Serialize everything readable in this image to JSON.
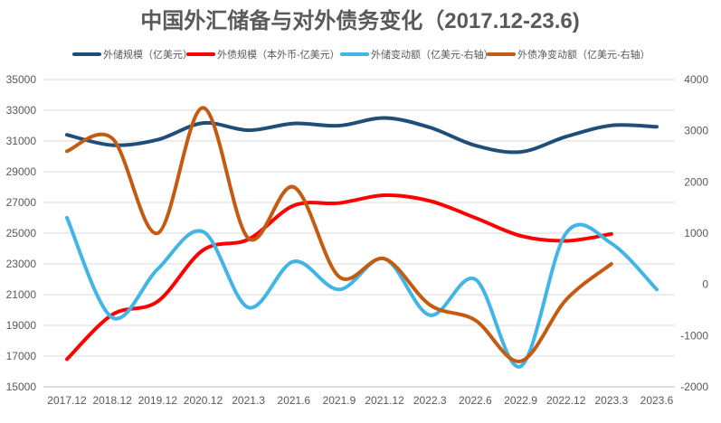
{
  "chart_data": {
    "type": "line",
    "title": "中国外汇储备与对外债务变化（2017.12-23.6)",
    "categories": [
      "2017.12",
      "2018.12",
      "2019.12",
      "2020.12",
      "2021.3",
      "2021.6",
      "2021.9",
      "2021.12",
      "2022.3",
      "2022.6",
      "2022.9",
      "2022.12",
      "2023.3",
      "2023.6"
    ],
    "y_left": {
      "range": [
        15000,
        35000
      ],
      "ticks": [
        "15000",
        "17000",
        "19000",
        "21000",
        "23000",
        "25000",
        "27000",
        "29000",
        "31000",
        "33000",
        "35000"
      ]
    },
    "y_right": {
      "range": [
        -2000,
        4000
      ],
      "ticks": [
        "-2000",
        "-1000",
        "0",
        "1000",
        "2000",
        "3000",
        "4000"
      ]
    },
    "grid": true,
    "legend_position": "top",
    "series": [
      {
        "name": "外储规模（亿美元）",
        "axis": "left",
        "color": "#1f4e79",
        "values": [
          31400,
          30730,
          31080,
          32170,
          31700,
          32140,
          32000,
          32500,
          31880,
          30710,
          30290,
          31280,
          32010,
          31930
        ]
      },
      {
        "name": "外债规模（本外币-亿美元）",
        "axis": "left",
        "color": "#ff0000",
        "values": [
          16800,
          19700,
          20560,
          23900,
          24600,
          26800,
          26960,
          27470,
          27100,
          26000,
          24830,
          24500,
          24950,
          null
        ]
      },
      {
        "name": "外储变动额（亿美元-右轴）",
        "axis": "right",
        "color": "#41b6e6",
        "values": [
          1300,
          -650,
          300,
          1030,
          -450,
          450,
          -100,
          500,
          -600,
          100,
          -1600,
          1000,
          800,
          -100
        ]
      },
      {
        "name": "外债净变动额（亿美元-右轴）",
        "axis": "right",
        "color": "#c55a11",
        "values": [
          2600,
          2850,
          1000,
          3450,
          900,
          1900,
          150,
          500,
          -400,
          -700,
          -1500,
          -300,
          400,
          null
        ]
      }
    ]
  }
}
